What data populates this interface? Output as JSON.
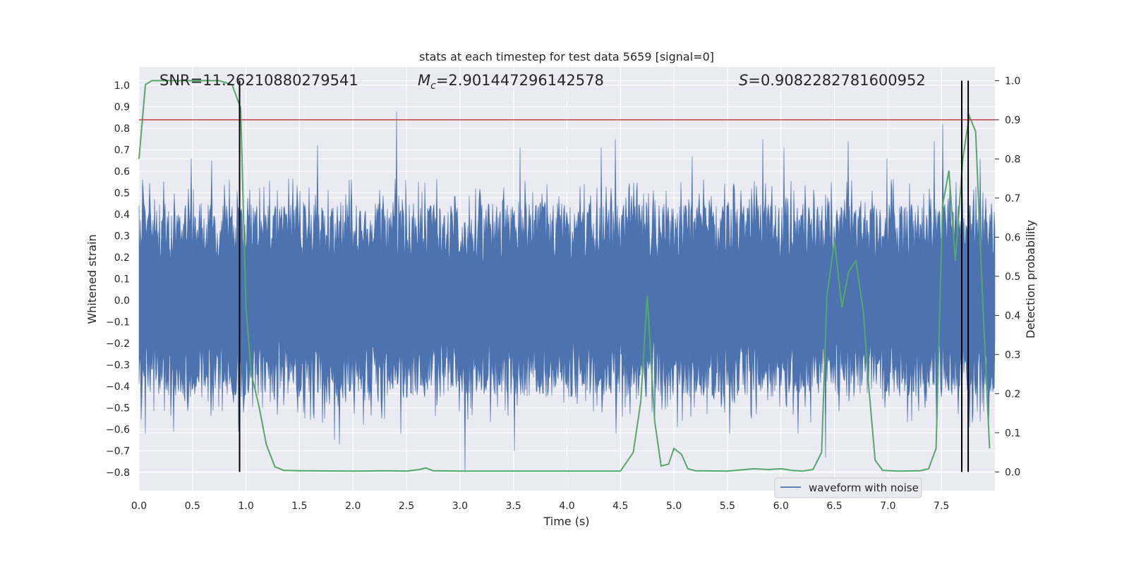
{
  "chart_data": {
    "type": "line",
    "title": "stats at each timestep for test data 5659 [signal=0]",
    "xlabel": "Time (s)",
    "ylabel": "Whitened strain",
    "y2label": "Detection probability",
    "xlim": [
      0.0,
      8.0
    ],
    "ylim": [
      -0.885,
      1.085
    ],
    "y2lim": [
      -0.048,
      1.035
    ],
    "xticks": [
      "0.0",
      "0.5",
      "1.0",
      "1.5",
      "2.0",
      "2.5",
      "3.0",
      "3.5",
      "4.0",
      "4.5",
      "5.0",
      "5.5",
      "6.0",
      "6.5",
      "7.0",
      "7.5"
    ],
    "yticks": [
      "−0.8",
      "−0.7",
      "−0.6",
      "−0.5",
      "−0.4",
      "−0.3",
      "−0.2",
      "−0.1",
      "0.0",
      "0.1",
      "0.2",
      "0.3",
      "0.4",
      "0.5",
      "0.6",
      "0.7",
      "0.8",
      "0.9",
      "1.0"
    ],
    "y2ticks": [
      "0.0",
      "0.1",
      "0.2",
      "0.3",
      "0.4",
      "0.5",
      "0.6",
      "0.7",
      "0.8",
      "0.9",
      "1.0"
    ],
    "grid": true,
    "legend": {
      "position": "lower-right",
      "entries": [
        "waveform with noise"
      ]
    },
    "annotations": {
      "snr": "SNR=11.26210880279541",
      "mc_symbol": "M",
      "mc_sub": "c",
      "mc_value": "=2.901447296142578",
      "s_symbol": "S",
      "s_value": "=0.9082282781600952"
    },
    "series": [
      {
        "name": "waveform with noise",
        "axis": "left",
        "color": "#4c72b0",
        "band": {
          "typical_max": 0.45,
          "typical_min": -0.45
        },
        "spikes": [
          {
            "x": 2.41,
            "y": 0.88
          },
          {
            "x": 7.51,
            "y": 0.82
          },
          {
            "x": 4.45,
            "y": 0.75
          },
          {
            "x": 5.83,
            "y": 0.75
          },
          {
            "x": 6.63,
            "y": 0.74
          },
          {
            "x": 7.43,
            "y": 0.74
          },
          {
            "x": 1.67,
            "y": 0.72
          },
          {
            "x": 3.56,
            "y": 0.71
          },
          {
            "x": 4.32,
            "y": 0.71
          },
          {
            "x": 6.03,
            "y": 0.71
          },
          {
            "x": 5.17,
            "y": 0.67
          },
          {
            "x": 0.49,
            "y": 0.66
          },
          {
            "x": 0.68,
            "y": 0.65
          },
          {
            "x": 6.99,
            "y": 0.66
          },
          {
            "x": 7.69,
            "y": 0.66
          },
          {
            "x": 7.86,
            "y": 0.66
          },
          {
            "x": 3.05,
            "y": -0.8
          },
          {
            "x": 3.51,
            "y": -0.7
          },
          {
            "x": 1.87,
            "y": -0.67
          },
          {
            "x": 1.83,
            "y": -0.65
          },
          {
            "x": 6.42,
            "y": -0.73
          },
          {
            "x": 0.93,
            "y": -0.61
          },
          {
            "x": 0.06,
            "y": -0.62
          },
          {
            "x": 0.32,
            "y": -0.61
          },
          {
            "x": 7.76,
            "y": -0.59
          },
          {
            "x": 7.94,
            "y": -0.61
          },
          {
            "x": 2.45,
            "y": -0.62
          },
          {
            "x": 4.46,
            "y": -0.62
          },
          {
            "x": 5.52,
            "y": -0.62
          },
          {
            "x": 6.16,
            "y": -0.62
          },
          {
            "x": 5.03,
            "y": -0.59
          },
          {
            "x": 2.1,
            "y": -0.58
          }
        ]
      },
      {
        "name": "",
        "axis": "right",
        "color": "#55a868",
        "x": [
          0.0,
          0.06,
          0.12,
          0.25,
          0.5,
          0.75,
          0.87,
          0.95,
          1.0,
          1.05,
          1.12,
          1.19,
          1.27,
          1.35,
          1.5,
          2.0,
          2.3,
          2.5,
          2.62,
          2.68,
          2.75,
          3.0,
          3.5,
          4.0,
          4.5,
          4.62,
          4.69,
          4.75,
          4.82,
          4.88,
          4.95,
          5.0,
          5.07,
          5.13,
          5.2,
          5.5,
          5.75,
          5.88,
          6.0,
          6.1,
          6.2,
          6.3,
          6.38,
          6.43,
          6.5,
          6.57,
          6.63,
          6.7,
          6.77,
          6.82,
          6.88,
          6.95,
          7.1,
          7.3,
          7.38,
          7.45,
          7.51,
          7.57,
          7.63,
          7.7,
          7.76,
          7.82,
          7.88,
          7.95
        ],
        "values": [
          0.8,
          0.99,
          1.0,
          1.0,
          1.0,
          1.0,
          0.99,
          0.93,
          0.42,
          0.25,
          0.17,
          0.07,
          0.013,
          0.004,
          0.003,
          0.002,
          0.003,
          0.002,
          0.006,
          0.01,
          0.003,
          0.002,
          0.002,
          0.002,
          0.002,
          0.05,
          0.18,
          0.45,
          0.13,
          0.015,
          0.02,
          0.06,
          0.045,
          0.008,
          0.003,
          0.002,
          0.008,
          0.006,
          0.008,
          0.004,
          0.002,
          0.006,
          0.05,
          0.45,
          0.59,
          0.42,
          0.51,
          0.54,
          0.41,
          0.22,
          0.03,
          0.004,
          0.002,
          0.003,
          0.008,
          0.06,
          0.68,
          0.77,
          0.54,
          0.8,
          0.91,
          0.87,
          0.47,
          0.06
        ]
      },
      {
        "name": "",
        "axis": "right",
        "color": "#c44e52",
        "type": "hline",
        "value": 0.9
      }
    ],
    "vlines": [
      0.94,
      7.69,
      7.75
    ]
  }
}
